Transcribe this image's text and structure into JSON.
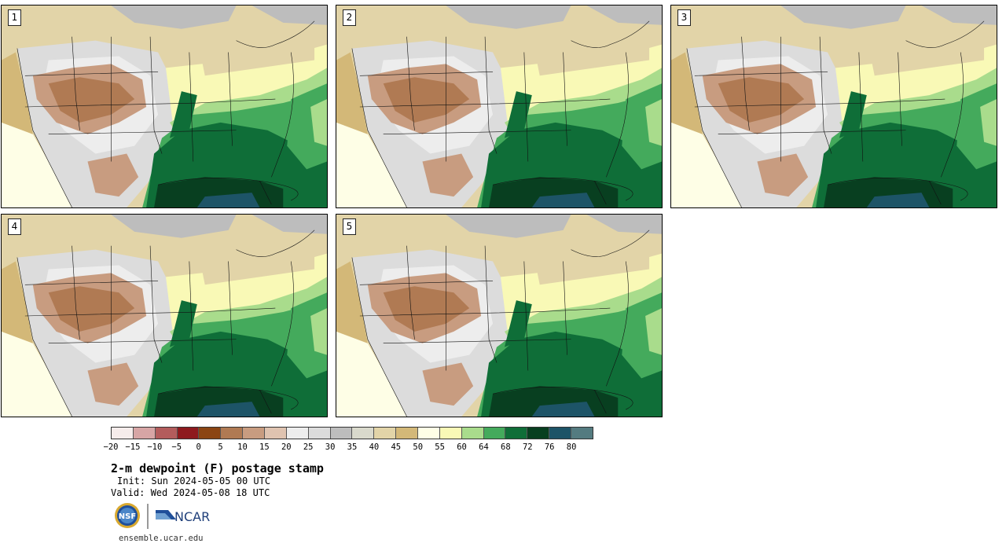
{
  "panels": [
    {
      "label": "1"
    },
    {
      "label": "2"
    },
    {
      "label": "3"
    },
    {
      "label": "4"
    },
    {
      "label": "5"
    }
  ],
  "colorbar": {
    "colors": [
      "#f6eceb",
      "#d7a5a5",
      "#b35c5c",
      "#8e1a1e",
      "#8b4513",
      "#b07a53",
      "#c89c80",
      "#dfc3b0",
      "#ededed",
      "#dcdcdc",
      "#bdbdbd",
      "#d9d9cc",
      "#e2d4a8",
      "#d3b878",
      "#fefee6",
      "#f9f9b6",
      "#a9dc8c",
      "#44aa5c",
      "#0f6e38",
      "#083f20",
      "#1d5467",
      "#547b80"
    ],
    "tick_labels": [
      "−20",
      "−15",
      "−10",
      "−5",
      "0",
      "5",
      "10",
      "15",
      "20",
      "25",
      "30",
      "35",
      "40",
      "45",
      "50",
      "55",
      "60",
      "64",
      "68",
      "72",
      "76",
      "80"
    ]
  },
  "title": "2-m dewpoint (F) postage stamp",
  "init": "Init: Sun 2024-05-05 00 UTC",
  "valid": "Valid: Wed 2024-05-08 18 UTC",
  "logos": {
    "nsf_text": "NSF",
    "ncar_text": "NCAR"
  },
  "url": "ensemble.ucar.edu"
}
